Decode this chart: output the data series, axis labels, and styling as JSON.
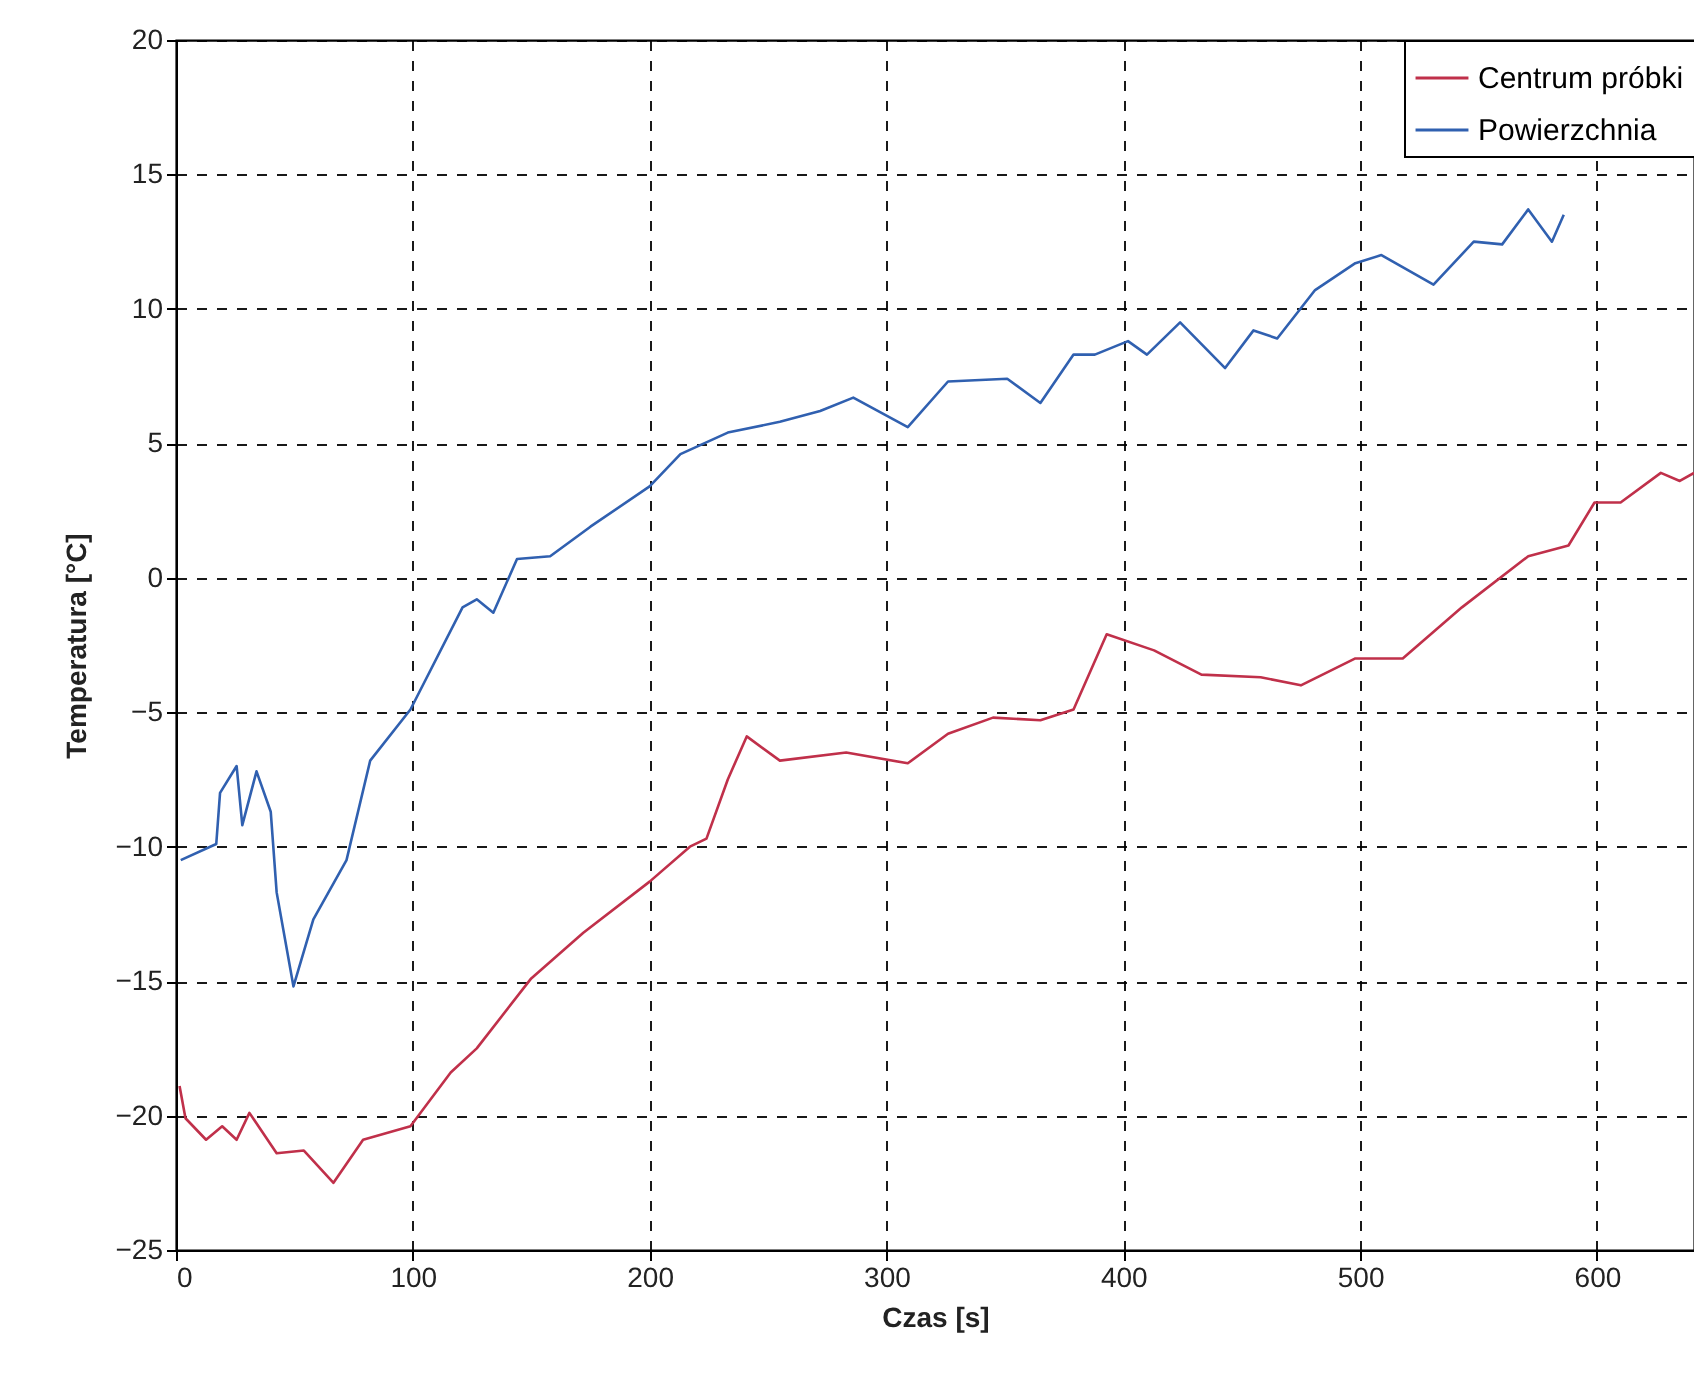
{
  "chart_data": {
    "type": "line",
    "xlabel": "Czas [s]",
    "ylabel": "Temperatura [°C]",
    "xlim": [
      0,
      641
    ],
    "ylim": [
      -25,
      20
    ],
    "xticks": [
      0,
      100,
      200,
      300,
      400,
      500,
      600
    ],
    "yticks": [
      -25,
      -20,
      -15,
      -10,
      -5,
      0,
      5,
      10,
      15,
      20
    ],
    "grid": true,
    "legend": "top right",
    "line_style": "solid",
    "series": [
      {
        "name": "Centrum próbki",
        "color": "#c0304a",
        "x": [
          1.5,
          4,
          12.7,
          19.5,
          25.6,
          31,
          42.5,
          54,
          66.5,
          79,
          99,
          116,
          127,
          150,
          172,
          200,
          217,
          224,
          233,
          241,
          255,
          283,
          309,
          326,
          345,
          365,
          379,
          393,
          413,
          433,
          458,
          475,
          498,
          518,
          543,
          571,
          588,
          599,
          610,
          627,
          635,
          641
        ],
        "values": [
          -18.9,
          -20.1,
          -20.9,
          -20.4,
          -20.9,
          -19.9,
          -21.4,
          -21.3,
          -22.5,
          -20.9,
          -20.4,
          -18.4,
          -17.5,
          -14.9,
          -13.2,
          -11.3,
          -10,
          -9.7,
          -7.5,
          -5.9,
          -6.8,
          -6.5,
          -6.9,
          -5.8,
          -5.2,
          -5.3,
          -4.9,
          -2.1,
          -2.7,
          -3.6,
          -3.7,
          -4.0,
          -3.0,
          -3.0,
          -1.1,
          0.8,
          1.2,
          2.8,
          2.8,
          3.9,
          3.6,
          3.9
        ]
      },
      {
        "name": "Powierzchnia",
        "color": "#3060b0",
        "x": [
          2,
          17,
          18.6,
          25.6,
          28,
          34,
          40,
          42.5,
          49.6,
          58,
          72,
          82,
          99,
          121,
          127,
          134,
          144,
          158,
          175,
          200,
          213,
          233,
          255,
          272,
          286,
          309,
          326,
          351,
          365,
          379,
          388,
          402,
          410,
          424,
          443,
          455,
          465,
          481,
          498,
          509,
          531,
          548,
          560,
          571,
          581,
          586
        ],
        "values": [
          -10.5,
          -9.9,
          -8,
          -7,
          -9.2,
          -7.2,
          -8.7,
          -11.7,
          -15.2,
          -12.7,
          -10.5,
          -6.8,
          -4.9,
          -1.1,
          -0.8,
          -1.3,
          0.7,
          0.8,
          1.9,
          3.4,
          4.6,
          5.4,
          5.8,
          6.2,
          6.7,
          5.6,
          7.3,
          7.4,
          6.5,
          8.3,
          8.3,
          8.8,
          8.3,
          9.5,
          7.8,
          9.2,
          8.9,
          10.7,
          11.7,
          12,
          10.9,
          12.5,
          12.4,
          13.7,
          12.5,
          13.5
        ]
      }
    ]
  }
}
